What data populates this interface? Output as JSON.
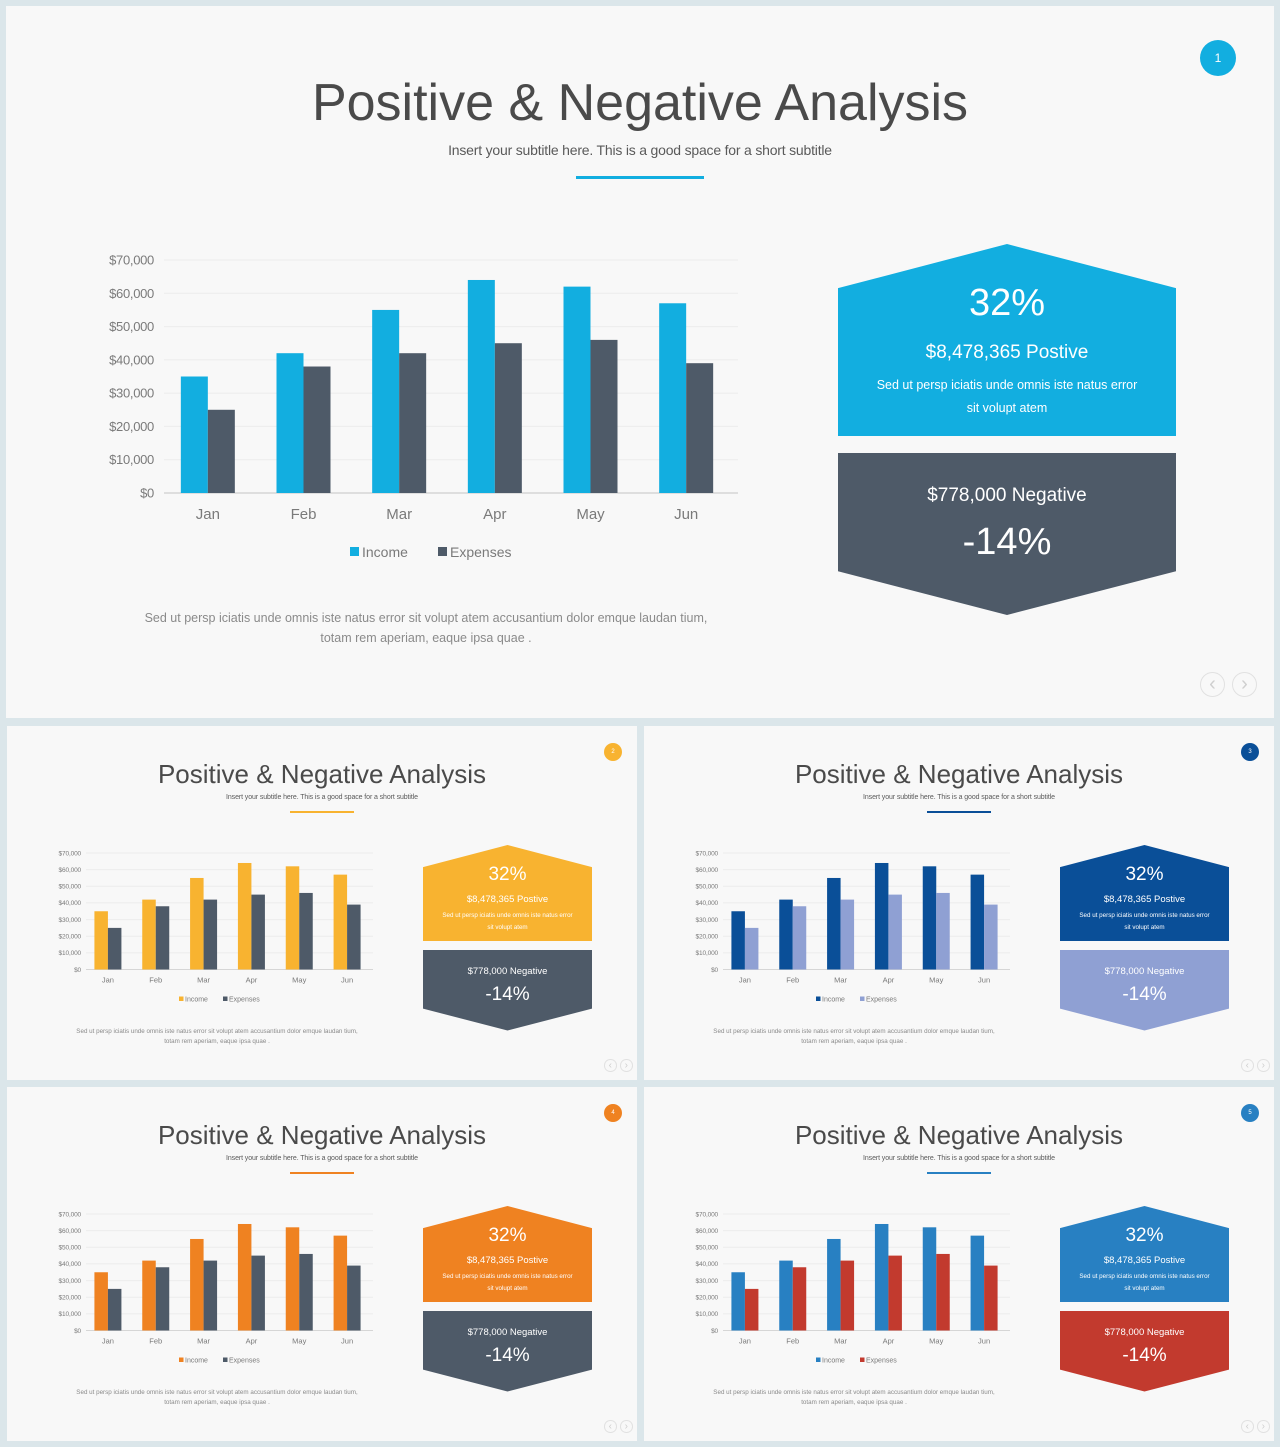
{
  "title": "Positive & Negative Analysis",
  "subtitle": "Insert your subtitle here. This is a good space for a short subtitle",
  "body_text_line1": "Sed ut persp iciatis unde omnis iste natus error sit volupt atem accusantium dolor emque laudan tium,",
  "body_text_line2": "totam rem aperiam, eaque ipsa quae .",
  "positive": {
    "percent": "32%",
    "amount": "$8,478,365 Postive",
    "text_line1": "Sed ut persp iciatis unde omnis iste natus error",
    "text_line2": "sit volupt atem"
  },
  "negative": {
    "amount": "$778,000  Negative",
    "percent": "-14%"
  },
  "nav": {
    "prev": "‹",
    "next": "›"
  },
  "chart_data": {
    "type": "bar",
    "categories": [
      "Jan",
      "Feb",
      "Mar",
      "Apr",
      "May",
      "Jun"
    ],
    "series": [
      {
        "name": "Income",
        "values": [
          35000,
          42000,
          55000,
          64000,
          62000,
          57000
        ]
      },
      {
        "name": "Expenses",
        "values": [
          25000,
          38000,
          42000,
          45000,
          46000,
          39000
        ]
      }
    ],
    "ylim": [
      0,
      70000
    ],
    "yticks": [
      "$0",
      "$10,000",
      "$20,000",
      "$30,000",
      "$40,000",
      "$50,000",
      "$60,000",
      "$70,000"
    ],
    "legend": "bottom",
    "grid": true
  },
  "slides": [
    {
      "page_number": "1",
      "colors": {
        "accent": "#12aee0",
        "income": "#12aee0",
        "expenses": "#4e5a68",
        "positive_box": "#12aee0",
        "negative_box": "#4e5a68"
      }
    },
    {
      "page_number": "2",
      "colors": {
        "accent": "#f8b330",
        "income": "#f8b330",
        "expenses": "#4e5a68",
        "positive_box": "#f8b330",
        "negative_box": "#4e5a68"
      }
    },
    {
      "page_number": "3",
      "colors": {
        "accent": "#0a4f98",
        "income": "#0a4f98",
        "expenses": "#8fa0d3",
        "positive_box": "#0a4f98",
        "negative_box": "#8fa0d3"
      }
    },
    {
      "page_number": "4",
      "colors": {
        "accent": "#ef8221",
        "income": "#ef8221",
        "expenses": "#4e5a68",
        "positive_box": "#ef8221",
        "negative_box": "#4e5a68"
      }
    },
    {
      "page_number": "5",
      "colors": {
        "accent": "#2880c2",
        "income": "#2880c2",
        "expenses": "#c23a2e",
        "positive_box": "#2880c2",
        "negative_box": "#c23a2e"
      }
    }
  ]
}
